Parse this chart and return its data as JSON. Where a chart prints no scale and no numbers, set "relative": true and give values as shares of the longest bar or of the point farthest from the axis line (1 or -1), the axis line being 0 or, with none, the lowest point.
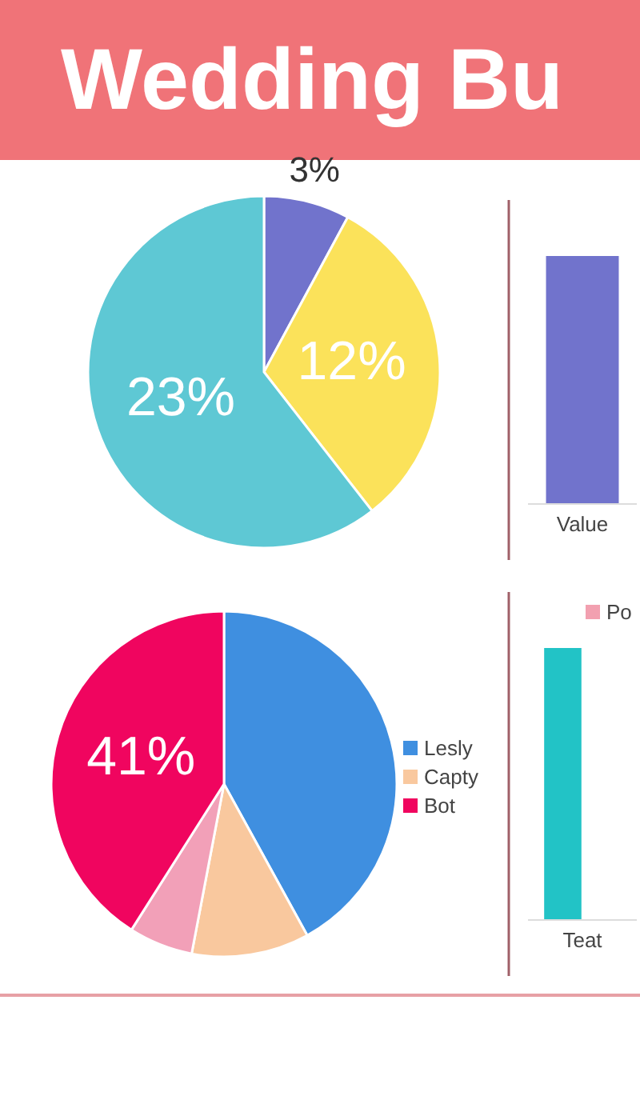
{
  "chart_data": [
    {
      "type": "pie",
      "title": "Wedding Bu",
      "categories": [
        null,
        null,
        null
      ],
      "values": [
        3,
        12,
        23
      ],
      "colors": [
        "#7173cc",
        "#fbe25a",
        "#5ec8d4"
      ],
      "value_labels": [
        "3%",
        "12%",
        "23%"
      ]
    },
    {
      "type": "bar",
      "categories": [
        "Value"
      ],
      "values": [
        1
      ],
      "colors": [
        "#7173cc"
      ],
      "relative": true
    },
    {
      "type": "pie",
      "categories": [
        "Lesly",
        "Capty",
        null,
        "Bot"
      ],
      "values": [
        42,
        11,
        6,
        41
      ],
      "colors": [
        "#3f8fe0",
        "#f9c89e",
        "#f2a0b8",
        "#f0055f"
      ],
      "value_labels": [
        null,
        null,
        null,
        "41%"
      ],
      "legend": "right"
    },
    {
      "type": "bar",
      "categories": [
        "Teat"
      ],
      "relative": true,
      "legend": "top",
      "series": [
        {
          "color": "#22c3c6",
          "values": [
            1
          ]
        },
        {
          "name": "Po",
          "color": "#f2a0b0",
          "values": [
            null
          ]
        }
      ]
    }
  ]
}
